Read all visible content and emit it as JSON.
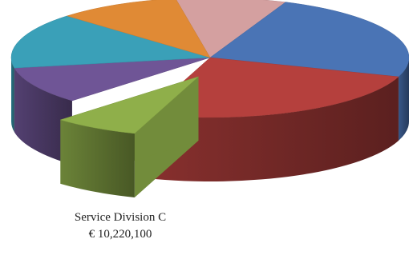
{
  "chart_data": {
    "type": "pie3d",
    "categories": [
      null,
      null,
      null,
      "Service Division C",
      null,
      null,
      null
    ],
    "values": [
      13100000,
      35000000,
      36500000,
      10220100,
      14600000,
      21900000,
      14600000
    ],
    "value_labels": [
      null,
      null,
      null,
      "€ 10,220,100",
      null,
      null,
      null
    ],
    "colors": [
      "#d4a0a0",
      "#4a74b5",
      "#b5403d",
      "#8faf4a",
      "#6f5596",
      "#3aa0b8",
      "#e08a35"
    ],
    "exploded": [
      3
    ]
  }
}
